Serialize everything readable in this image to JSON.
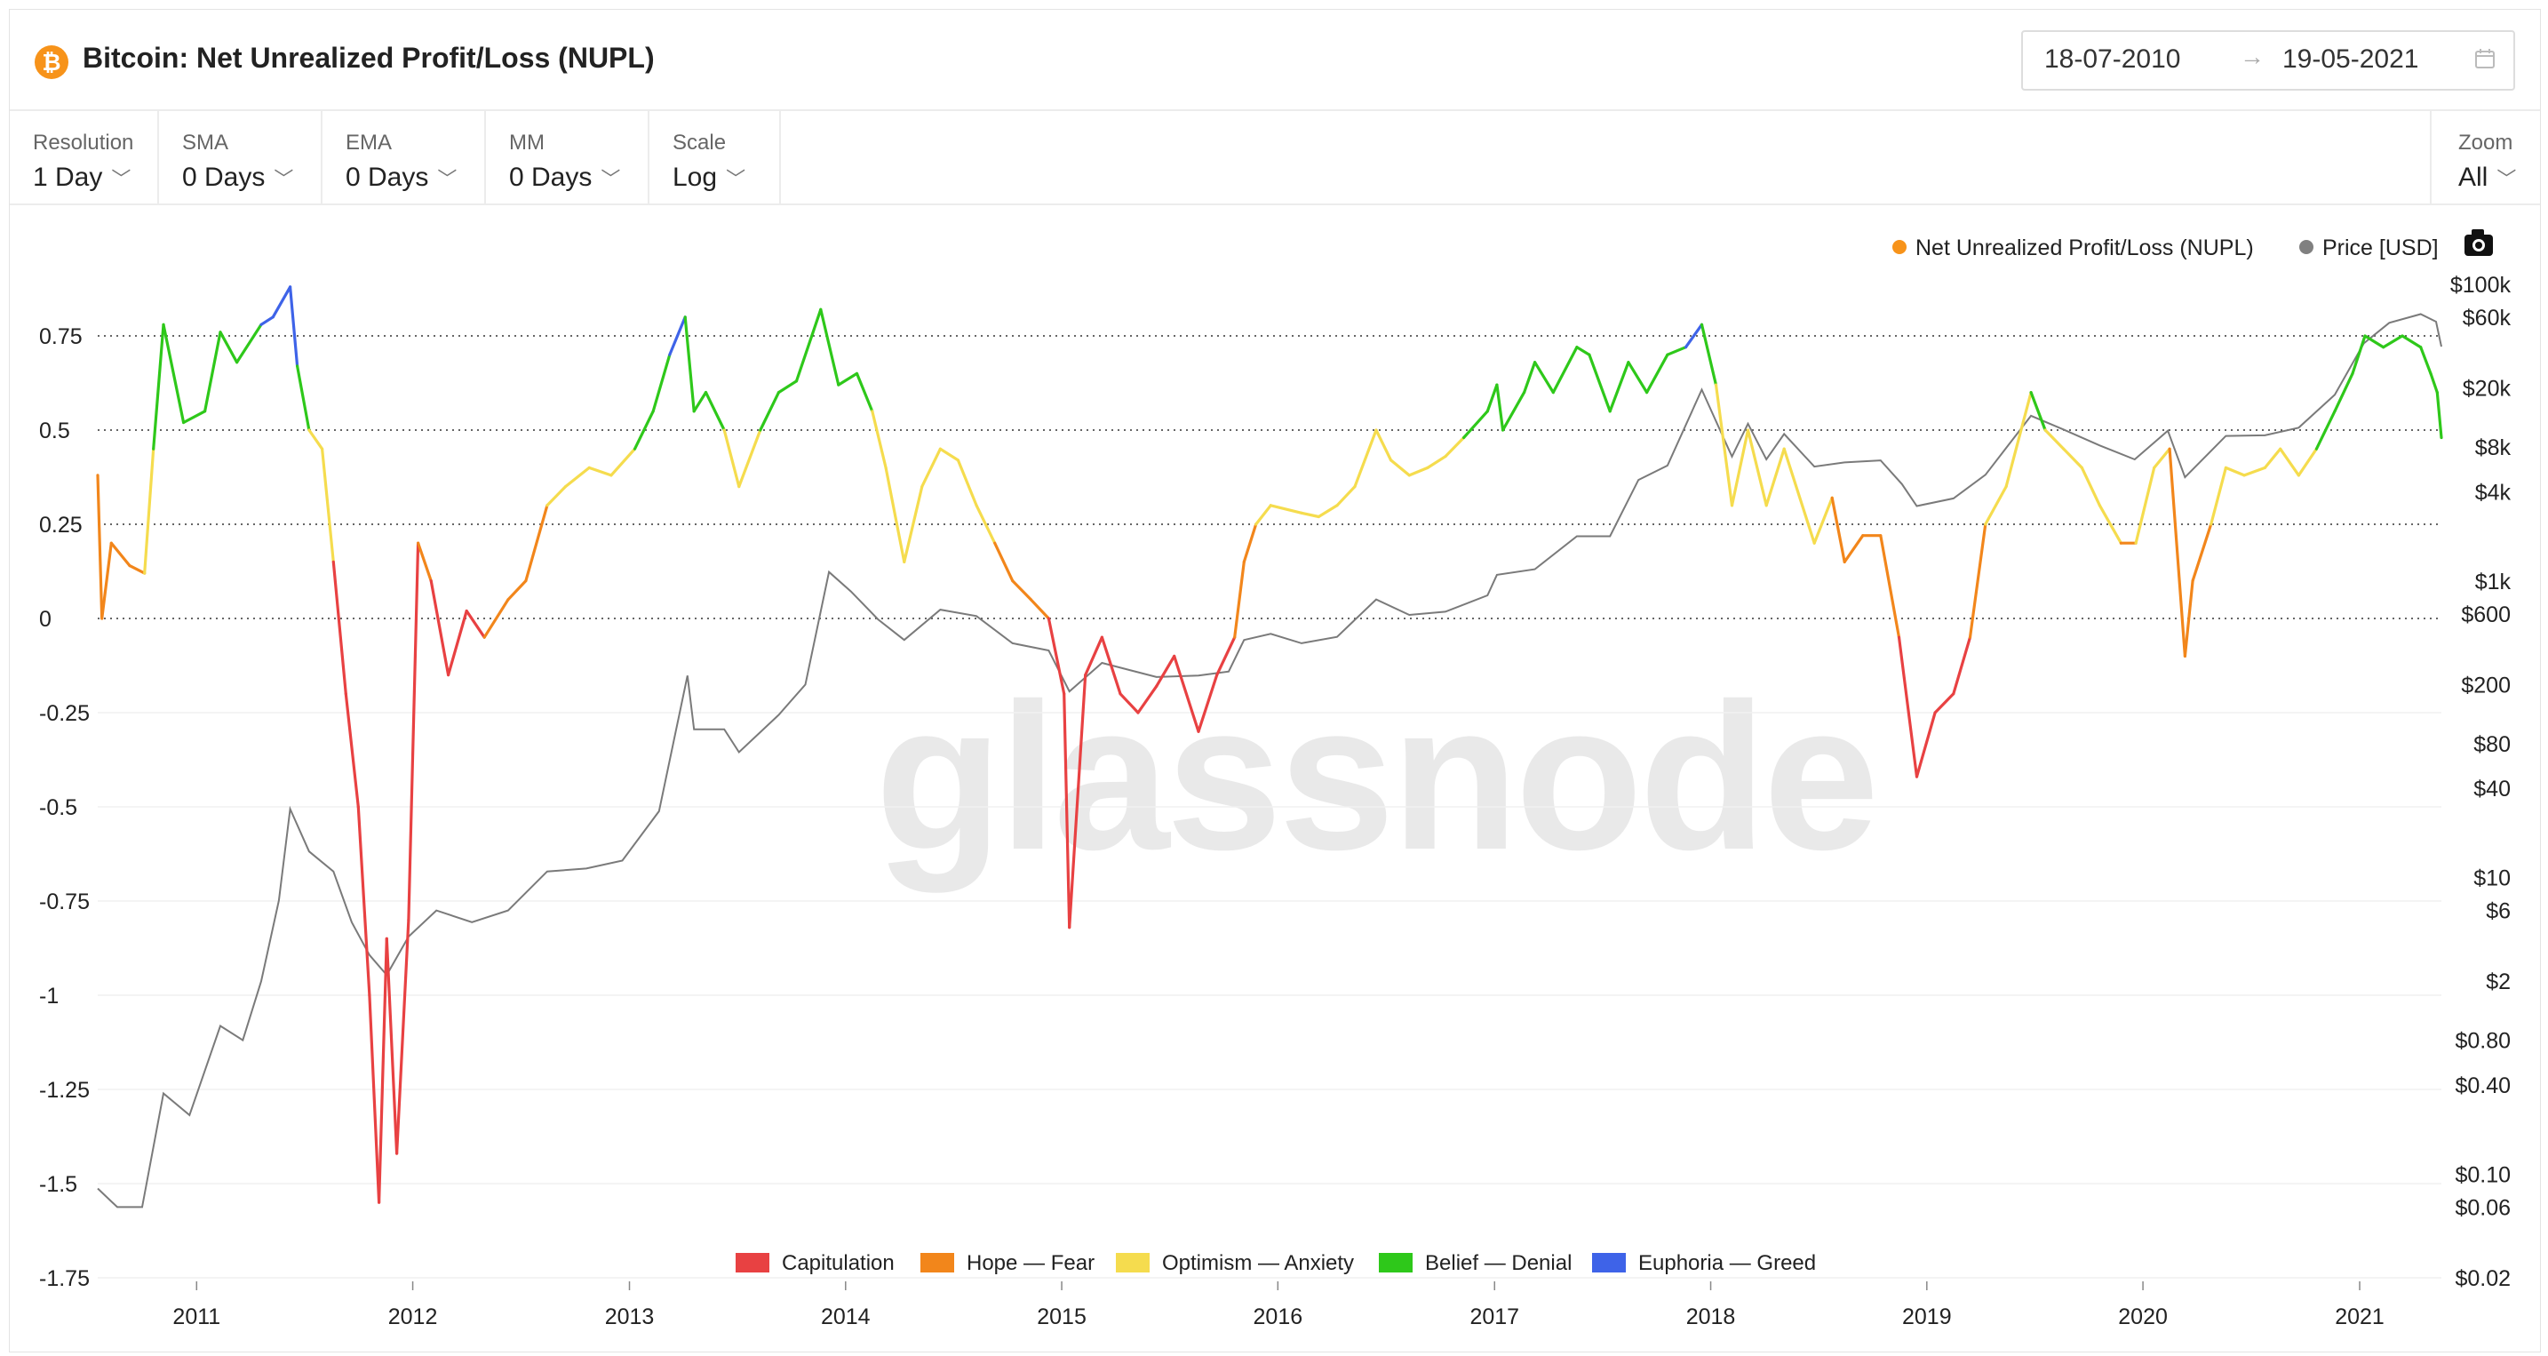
{
  "header": {
    "asset_icon": "bitcoin-icon",
    "title": "Bitcoin: Net Unrealized Profit/Loss (NUPL)",
    "date_from": "18-07-2010",
    "date_arrow": "→",
    "date_to": "19-05-2021",
    "calendar_icon": "calendar-icon"
  },
  "controls": [
    {
      "label": "Resolution",
      "value": "1 Day"
    },
    {
      "label": "SMA",
      "value": "0 Days"
    },
    {
      "label": "EMA",
      "value": "0 Days"
    },
    {
      "label": "MM",
      "value": "0 Days"
    },
    {
      "label": "Scale",
      "value": "Log"
    }
  ],
  "zoom": {
    "label": "Zoom",
    "value": "All"
  },
  "watermark": "glassnode",
  "camera_icon": "camera-icon",
  "chart_data": {
    "type": "line",
    "x_axis": {
      "ticks": [
        "2011",
        "2012",
        "2013",
        "2014",
        "2015",
        "2016",
        "2017",
        "2018",
        "2019",
        "2020",
        "2021"
      ],
      "range": [
        "2010-07-18",
        "2021-05-19"
      ]
    },
    "y_left": {
      "ticks": [
        0.75,
        0.5,
        0.25,
        0,
        -0.25,
        -0.5,
        -0.75,
        -1,
        -1.25,
        -1.5,
        -1.75
      ],
      "tick_labels": [
        "0.75",
        "0.5",
        "0.25",
        "0",
        "-0.25",
        "-0.5",
        "-0.75",
        "-1",
        "-1.25",
        "-1.5",
        "-1.75"
      ],
      "range": [
        -1.75,
        0.85
      ],
      "dotted_gridlines": [
        0.75,
        0.5,
        0.25,
        0
      ]
    },
    "y_right": {
      "scale": "log",
      "ticks": [
        100000,
        60000,
        20000,
        8000,
        4000,
        1000,
        600,
        200,
        80,
        40,
        10,
        6,
        2,
        0.8,
        0.4,
        0.1,
        0.06,
        0.02
      ],
      "tick_labels": [
        "$100k",
        "$60k",
        "$20k",
        "$8k",
        "$4k",
        "$1k",
        "$600",
        "$200",
        "$80",
        "$40",
        "$10",
        "$6",
        "$2",
        "$0.80",
        "$0.40",
        "$0.10",
        "$0.06",
        "$0.02"
      ],
      "range": [
        0.02,
        100000
      ]
    },
    "series": [
      {
        "name": "Net Unrealized Profit/Loss (NUPL)",
        "legend_color": "#f7931a",
        "axis": "left",
        "colored_by_zone": true,
        "points": [
          [
            "2010-07-18",
            0.38
          ],
          [
            "2010-07-25",
            0.0
          ],
          [
            "2010-08-10",
            0.2
          ],
          [
            "2010-09-10",
            0.14
          ],
          [
            "2010-10-05",
            0.12
          ],
          [
            "2010-10-20",
            0.45
          ],
          [
            "2010-11-06",
            0.78
          ],
          [
            "2010-12-10",
            0.52
          ],
          [
            "2011-01-15",
            0.55
          ],
          [
            "2011-02-10",
            0.76
          ],
          [
            "2011-03-10",
            0.68
          ],
          [
            "2011-04-20",
            0.78
          ],
          [
            "2011-05-10",
            0.8
          ],
          [
            "2011-06-08",
            0.88
          ],
          [
            "2011-06-20",
            0.67
          ],
          [
            "2011-07-10",
            0.5
          ],
          [
            "2011-08-01",
            0.45
          ],
          [
            "2011-08-20",
            0.15
          ],
          [
            "2011-09-10",
            -0.2
          ],
          [
            "2011-10-01",
            -0.5
          ],
          [
            "2011-10-20",
            -1.0
          ],
          [
            "2011-11-05",
            -1.55
          ],
          [
            "2011-11-18",
            -0.85
          ],
          [
            "2011-12-05",
            -1.42
          ],
          [
            "2011-12-25",
            -0.8
          ],
          [
            "2012-01-10",
            0.2
          ],
          [
            "2012-02-01",
            0.1
          ],
          [
            "2012-03-01",
            -0.15
          ],
          [
            "2012-04-01",
            0.02
          ],
          [
            "2012-05-01",
            -0.05
          ],
          [
            "2012-06-10",
            0.05
          ],
          [
            "2012-07-10",
            0.1
          ],
          [
            "2012-08-15",
            0.3
          ],
          [
            "2012-09-15",
            0.35
          ],
          [
            "2012-10-25",
            0.4
          ],
          [
            "2012-12-01",
            0.38
          ],
          [
            "2013-01-10",
            0.45
          ],
          [
            "2013-02-10",
            0.55
          ],
          [
            "2013-03-10",
            0.7
          ],
          [
            "2013-04-05",
            0.8
          ],
          [
            "2013-04-20",
            0.55
          ],
          [
            "2013-05-10",
            0.6
          ],
          [
            "2013-06-10",
            0.5
          ],
          [
            "2013-07-05",
            0.35
          ],
          [
            "2013-08-10",
            0.5
          ],
          [
            "2013-09-10",
            0.6
          ],
          [
            "2013-10-10",
            0.63
          ],
          [
            "2013-11-20",
            0.82
          ],
          [
            "2013-12-20",
            0.62
          ],
          [
            "2014-01-20",
            0.65
          ],
          [
            "2014-02-15",
            0.55
          ],
          [
            "2014-03-10",
            0.4
          ],
          [
            "2014-04-10",
            0.15
          ],
          [
            "2014-05-10",
            0.35
          ],
          [
            "2014-06-10",
            0.45
          ],
          [
            "2014-07-10",
            0.42
          ],
          [
            "2014-08-10",
            0.3
          ],
          [
            "2014-09-10",
            0.2
          ],
          [
            "2014-10-10",
            0.1
          ],
          [
            "2014-11-10",
            0.05
          ],
          [
            "2014-12-10",
            0.0
          ],
          [
            "2015-01-05",
            -0.2
          ],
          [
            "2015-01-14",
            -0.82
          ],
          [
            "2015-02-10",
            -0.15
          ],
          [
            "2015-03-10",
            -0.05
          ],
          [
            "2015-04-10",
            -0.2
          ],
          [
            "2015-05-10",
            -0.25
          ],
          [
            "2015-06-10",
            -0.18
          ],
          [
            "2015-07-10",
            -0.1
          ],
          [
            "2015-08-20",
            -0.3
          ],
          [
            "2015-09-20",
            -0.15
          ],
          [
            "2015-10-20",
            -0.05
          ],
          [
            "2015-11-05",
            0.15
          ],
          [
            "2015-11-25",
            0.25
          ],
          [
            "2015-12-20",
            0.3
          ],
          [
            "2016-02-10",
            0.28
          ],
          [
            "2016-03-10",
            0.27
          ],
          [
            "2016-04-10",
            0.3
          ],
          [
            "2016-05-10",
            0.35
          ],
          [
            "2016-06-15",
            0.5
          ],
          [
            "2016-07-10",
            0.42
          ],
          [
            "2016-08-10",
            0.38
          ],
          [
            "2016-09-10",
            0.4
          ],
          [
            "2016-10-10",
            0.43
          ],
          [
            "2016-11-10",
            0.48
          ],
          [
            "2016-12-20",
            0.55
          ],
          [
            "2017-01-05",
            0.62
          ],
          [
            "2017-01-15",
            0.5
          ],
          [
            "2017-02-20",
            0.6
          ],
          [
            "2017-03-10",
            0.68
          ],
          [
            "2017-04-10",
            0.6
          ],
          [
            "2017-05-20",
            0.72
          ],
          [
            "2017-06-10",
            0.7
          ],
          [
            "2017-07-15",
            0.55
          ],
          [
            "2017-08-15",
            0.68
          ],
          [
            "2017-09-15",
            0.6
          ],
          [
            "2017-10-20",
            0.7
          ],
          [
            "2017-11-20",
            0.72
          ],
          [
            "2017-12-17",
            0.78
          ],
          [
            "2018-01-10",
            0.62
          ],
          [
            "2018-02-06",
            0.3
          ],
          [
            "2018-03-05",
            0.5
          ],
          [
            "2018-04-05",
            0.3
          ],
          [
            "2018-05-05",
            0.45
          ],
          [
            "2018-06-25",
            0.2
          ],
          [
            "2018-07-25",
            0.32
          ],
          [
            "2018-08-15",
            0.15
          ],
          [
            "2018-09-15",
            0.22
          ],
          [
            "2018-10-15",
            0.22
          ],
          [
            "2018-11-15",
            -0.05
          ],
          [
            "2018-12-15",
            -0.42
          ],
          [
            "2019-01-15",
            -0.25
          ],
          [
            "2019-02-15",
            -0.2
          ],
          [
            "2019-03-15",
            -0.05
          ],
          [
            "2019-04-10",
            0.25
          ],
          [
            "2019-05-15",
            0.35
          ],
          [
            "2019-06-26",
            0.6
          ],
          [
            "2019-07-20",
            0.5
          ],
          [
            "2019-08-20",
            0.45
          ],
          [
            "2019-09-20",
            0.4
          ],
          [
            "2019-10-20",
            0.3
          ],
          [
            "2019-11-25",
            0.2
          ],
          [
            "2019-12-20",
            0.2
          ],
          [
            "2020-01-20",
            0.4
          ],
          [
            "2020-02-15",
            0.45
          ],
          [
            "2020-03-12",
            -0.1
          ],
          [
            "2020-03-25",
            0.1
          ],
          [
            "2020-04-25",
            0.25
          ],
          [
            "2020-05-20",
            0.4
          ],
          [
            "2020-06-20",
            0.38
          ],
          [
            "2020-07-25",
            0.4
          ],
          [
            "2020-08-20",
            0.45
          ],
          [
            "2020-09-20",
            0.38
          ],
          [
            "2020-10-20",
            0.45
          ],
          [
            "2020-11-20",
            0.55
          ],
          [
            "2020-12-20",
            0.65
          ],
          [
            "2021-01-10",
            0.75
          ],
          [
            "2021-02-10",
            0.72
          ],
          [
            "2021-03-14",
            0.75
          ],
          [
            "2021-04-14",
            0.72
          ],
          [
            "2021-05-01",
            0.65
          ],
          [
            "2021-05-12",
            0.6
          ],
          [
            "2021-05-19",
            0.48
          ]
        ]
      },
      {
        "name": "Price [USD]",
        "legend_color": "#808080",
        "axis": "right",
        "points": [
          [
            "2010-07-18",
            0.08
          ],
          [
            "2010-08-20",
            0.06
          ],
          [
            "2010-10-01",
            0.06
          ],
          [
            "2010-11-06",
            0.35
          ],
          [
            "2010-12-20",
            0.25
          ],
          [
            "2011-02-10",
            1.0
          ],
          [
            "2011-03-20",
            0.8
          ],
          [
            "2011-04-20",
            2.0
          ],
          [
            "2011-05-20",
            7.0
          ],
          [
            "2011-06-08",
            29.0
          ],
          [
            "2011-07-10",
            15.0
          ],
          [
            "2011-08-20",
            11.0
          ],
          [
            "2011-09-20",
            5.0
          ],
          [
            "2011-10-20",
            3.0
          ],
          [
            "2011-11-18",
            2.2
          ],
          [
            "2011-12-25",
            4.0
          ],
          [
            "2012-02-10",
            6.0
          ],
          [
            "2012-04-10",
            5.0
          ],
          [
            "2012-06-10",
            6.0
          ],
          [
            "2012-08-15",
            11.0
          ],
          [
            "2012-10-20",
            11.5
          ],
          [
            "2012-12-20",
            13.0
          ],
          [
            "2013-02-20",
            28.0
          ],
          [
            "2013-04-09",
            230.0
          ],
          [
            "2013-04-20",
            100.0
          ],
          [
            "2013-06-10",
            100.0
          ],
          [
            "2013-07-05",
            70.0
          ],
          [
            "2013-09-10",
            125.0
          ],
          [
            "2013-10-25",
            200.0
          ],
          [
            "2013-12-04",
            1150.0
          ],
          [
            "2014-01-10",
            850.0
          ],
          [
            "2014-02-25",
            550.0
          ],
          [
            "2014-04-10",
            400.0
          ],
          [
            "2014-06-10",
            640.0
          ],
          [
            "2014-08-10",
            580.0
          ],
          [
            "2014-10-10",
            380.0
          ],
          [
            "2014-12-10",
            340.0
          ],
          [
            "2015-01-14",
            180.0
          ],
          [
            "2015-03-10",
            280.0
          ],
          [
            "2015-06-10",
            225.0
          ],
          [
            "2015-08-20",
            230.0
          ],
          [
            "2015-10-10",
            245.0
          ],
          [
            "2015-11-05",
            400.0
          ],
          [
            "2015-12-20",
            440.0
          ],
          [
            "2016-02-10",
            380.0
          ],
          [
            "2016-04-10",
            420.0
          ],
          [
            "2016-06-15",
            750.0
          ],
          [
            "2016-08-10",
            590.0
          ],
          [
            "2016-10-10",
            620.0
          ],
          [
            "2016-12-20",
            800.0
          ],
          [
            "2017-01-05",
            1100.0
          ],
          [
            "2017-03-10",
            1200.0
          ],
          [
            "2017-05-20",
            2000.0
          ],
          [
            "2017-07-15",
            2000.0
          ],
          [
            "2017-09-01",
            4800.0
          ],
          [
            "2017-10-20",
            6000.0
          ],
          [
            "2017-12-17",
            19500.0
          ],
          [
            "2018-02-06",
            6900.0
          ],
          [
            "2018-03-05",
            11500.0
          ],
          [
            "2018-04-05",
            6600.0
          ],
          [
            "2018-05-05",
            9800.0
          ],
          [
            "2018-06-25",
            5900.0
          ],
          [
            "2018-08-15",
            6300.0
          ],
          [
            "2018-10-15",
            6500.0
          ],
          [
            "2018-11-20",
            4500.0
          ],
          [
            "2018-12-15",
            3200.0
          ],
          [
            "2019-02-15",
            3600.0
          ],
          [
            "2019-04-10",
            5200.0
          ],
          [
            "2019-06-26",
            13000.0
          ],
          [
            "2019-08-20",
            10500.0
          ],
          [
            "2019-10-20",
            8200.0
          ],
          [
            "2019-12-18",
            6600.0
          ],
          [
            "2020-02-12",
            10300.0
          ],
          [
            "2020-03-12",
            5000.0
          ],
          [
            "2020-05-20",
            9500.0
          ],
          [
            "2020-07-25",
            9600.0
          ],
          [
            "2020-09-20",
            10800.0
          ],
          [
            "2020-11-20",
            18000.0
          ],
          [
            "2021-01-08",
            40000.0
          ],
          [
            "2021-02-20",
            55000.0
          ],
          [
            "2021-04-14",
            63000.0
          ],
          [
            "2021-05-10",
            56000.0
          ],
          [
            "2021-05-19",
            38000.0
          ]
        ]
      }
    ],
    "zones_legend": [
      {
        "name": "Capitulation",
        "color": "#e84142"
      },
      {
        "name": "Hope — Fear",
        "color": "#f2861b"
      },
      {
        "name": "Optimism — Anxiety",
        "color": "#f5dc4e"
      },
      {
        "name": "Belief — Denial",
        "color": "#2ec81a"
      },
      {
        "name": "Euphoria — Greed",
        "color": "#3e63e8"
      }
    ],
    "zone_thresholds": [
      0,
      0.25,
      0.5,
      0.75
    ]
  }
}
